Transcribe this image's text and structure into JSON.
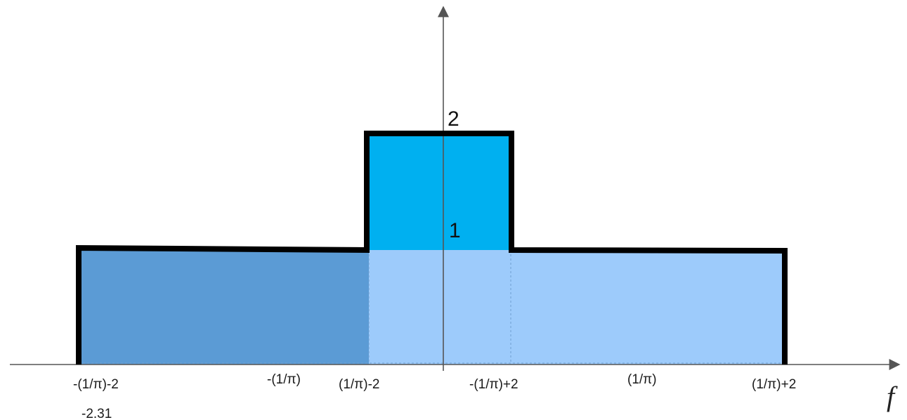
{
  "figure": {
    "axis_label": "f",
    "level_labels": [
      "2",
      "1"
    ],
    "tick_labels": [
      {
        "id": "t1",
        "text": "-(1/π)-2"
      },
      {
        "id": "t2",
        "text": "-(1/π)"
      },
      {
        "id": "t3",
        "text": "(1/π)-2"
      },
      {
        "id": "t4",
        "text": "-(1/π)+2"
      },
      {
        "id": "t5",
        "text": "(1/π)"
      },
      {
        "id": "t6",
        "text": "(1/π)+2"
      }
    ],
    "extra_note": "-2.31",
    "colors": {
      "left_region": "#5B9BD5",
      "right_region": "#9DCBFB",
      "top_block": "#00B0F0",
      "outline": "#000000",
      "axis": "#555555"
    }
  }
}
